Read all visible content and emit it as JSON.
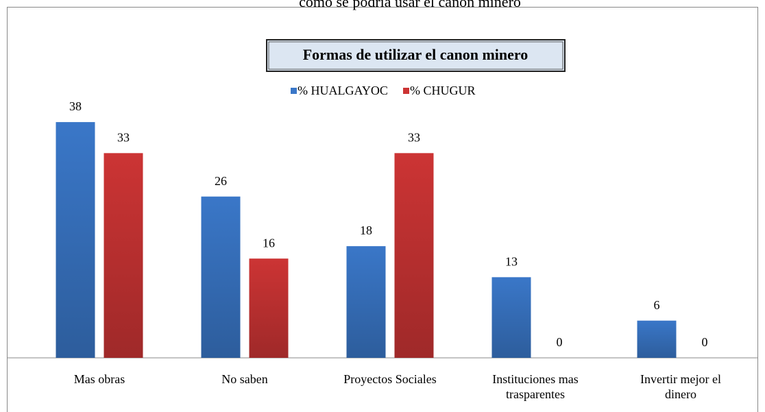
{
  "chart_data": {
    "type": "bar",
    "caption": "como se podría usar el canon minero",
    "title": "Formas de utilizar el  canon minero",
    "categories": [
      "Mas obras",
      "No saben",
      "Proyectos Sociales",
      "Instituciones mas trasparentes",
      "Invertir mejor el dinero"
    ],
    "series": [
      {
        "name": "% HUALGAYOC",
        "color": "#3a77c8",
        "values": [
          38,
          26,
          18,
          13,
          6
        ]
      },
      {
        "name": "% CHUGUR",
        "color": "#cc3434",
        "values": [
          33,
          16,
          33,
          0,
          0
        ]
      }
    ],
    "ylim": [
      0,
      40
    ],
    "legend": "top"
  }
}
